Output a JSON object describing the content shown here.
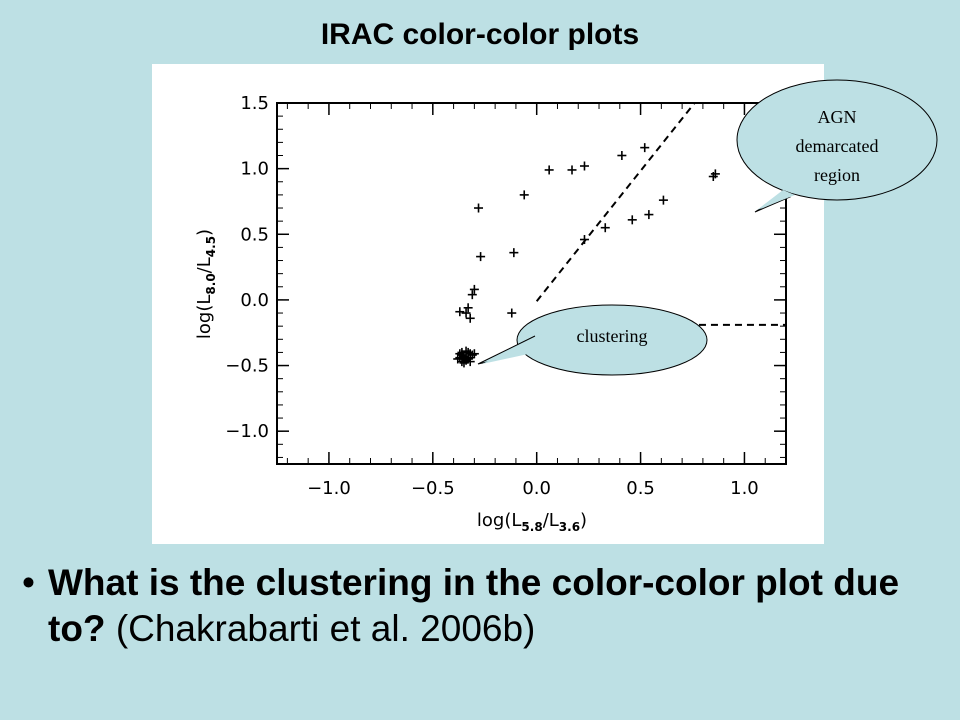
{
  "slide": {
    "title": "IRAC color-color plots",
    "bullet_question": "What is the clustering in the color-color plot due to?",
    "bullet_citation": "(Chakrabarti et al. 2006b)"
  },
  "callouts": {
    "agn": [
      "AGN",
      "demarcated",
      "region"
    ],
    "cluster": "clustering"
  },
  "chart_data": {
    "type": "scatter",
    "xlabel": "log(L5.8/L3.6)",
    "ylabel": "log(L8.0/L4.5)",
    "xlabel_parts": {
      "base": "log(L",
      "sub1": "5.8",
      "mid": "/L",
      "sub2": "3.6",
      "end": ")"
    },
    "ylabel_parts": {
      "base": "log(L",
      "sub1": "8.0",
      "mid": "/L",
      "sub2": "4.5",
      "end": ")"
    },
    "xlim": [
      -1.25,
      1.2
    ],
    "ylim": [
      -1.25,
      1.5
    ],
    "xticks": [
      "-1.0",
      "-0.5",
      "0.0",
      "0.5",
      "1.0"
    ],
    "xtick_values": [
      -1.0,
      -0.5,
      0.0,
      0.5,
      1.0
    ],
    "yticks": [
      "-1.0",
      "-0.5",
      "0.0",
      "0.5",
      "1.0",
      "1.5"
    ],
    "ytick_values": [
      -1.0,
      -0.5,
      0.0,
      0.5,
      1.0,
      1.5
    ],
    "marker": "+",
    "points": [
      [
        0.06,
        0.99
      ],
      [
        0.17,
        0.99
      ],
      [
        0.23,
        1.02
      ],
      [
        0.41,
        1.1
      ],
      [
        0.52,
        1.16
      ],
      [
        0.85,
        0.94
      ],
      [
        0.86,
        0.96
      ],
      [
        -0.28,
        0.7
      ],
      [
        -0.06,
        0.8
      ],
      [
        -0.27,
        0.33
      ],
      [
        -0.11,
        0.36
      ],
      [
        0.23,
        0.46
      ],
      [
        0.33,
        0.55
      ],
      [
        0.46,
        0.61
      ],
      [
        0.54,
        0.65
      ],
      [
        0.61,
        0.76
      ],
      [
        -0.3,
        0.08
      ],
      [
        -0.31,
        0.04
      ],
      [
        -0.33,
        -0.06
      ],
      [
        -0.37,
        -0.09
      ],
      [
        -0.34,
        -0.1
      ],
      [
        -0.32,
        -0.14
      ],
      [
        -0.12,
        -0.1
      ],
      [
        -0.36,
        -0.4
      ],
      [
        -0.34,
        -0.39
      ],
      [
        -0.32,
        -0.41
      ],
      [
        -0.37,
        -0.44
      ],
      [
        -0.35,
        -0.43
      ],
      [
        -0.33,
        -0.45
      ],
      [
        -0.31,
        -0.42
      ],
      [
        -0.36,
        -0.47
      ],
      [
        -0.34,
        -0.46
      ],
      [
        -0.32,
        -0.44
      ],
      [
        -0.38,
        -0.45
      ],
      [
        -0.35,
        -0.48
      ],
      [
        -0.33,
        -0.4
      ],
      [
        -0.3,
        -0.41
      ],
      [
        -0.36,
        -0.42
      ],
      [
        -0.34,
        -0.44
      ],
      [
        -0.37,
        -0.41
      ],
      [
        -0.32,
        -0.47
      ],
      [
        -0.35,
        -0.45
      ]
    ],
    "agn_wedge_lines": [
      {
        "style": "dashed",
        "from": [
          0.0,
          -0.01
        ],
        "to": [
          0.76,
          1.5
        ]
      },
      {
        "style": "dashed",
        "from": [
          0.55,
          -0.19
        ],
        "to": [
          1.2,
          -0.19
        ]
      }
    ]
  }
}
